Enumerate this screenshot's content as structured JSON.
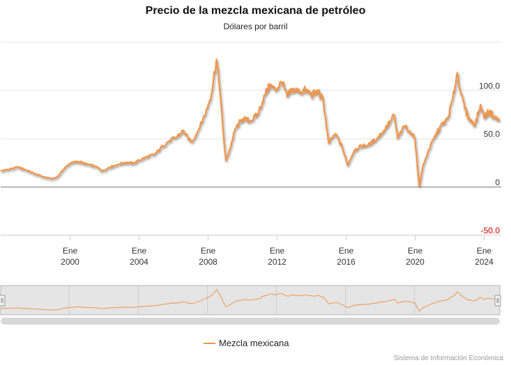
{
  "chart_data": {
    "type": "line",
    "title": "Precio de la mezcla mexicana de petróleo",
    "subtitle": "Dólares por barril",
    "xlabel": "",
    "ylabel": "",
    "x_range": [
      1996.0,
      2025.0
    ],
    "ylim": [
      -50,
      150
    ],
    "yticks": [
      {
        "value": 100,
        "label": "100.0"
      },
      {
        "value": 50,
        "label": "50.0"
      },
      {
        "value": 0,
        "label": "0"
      },
      {
        "value": -50,
        "label": "-50.0"
      }
    ],
    "xticks": [
      {
        "value": 2000,
        "month": "Ene",
        "year": "2000"
      },
      {
        "value": 2004,
        "month": "Ene",
        "year": "2004"
      },
      {
        "value": 2008,
        "month": "Ene",
        "year": "2008"
      },
      {
        "value": 2012,
        "month": "Ene",
        "year": "2012"
      },
      {
        "value": 2016,
        "month": "Ene",
        "year": "2016"
      },
      {
        "value": 2020,
        "month": "Ene",
        "year": "2020"
      },
      {
        "value": 2024,
        "month": "Ene",
        "year": "2024"
      }
    ],
    "series": [
      {
        "name": "Mezcla mexicana",
        "color": "#f0954a",
        "points": [
          [
            1996.0,
            16
          ],
          [
            1996.5,
            18
          ],
          [
            1997.0,
            20
          ],
          [
            1997.5,
            17
          ],
          [
            1998.0,
            13
          ],
          [
            1998.5,
            10
          ],
          [
            1999.0,
            8
          ],
          [
            1999.3,
            10
          ],
          [
            1999.6,
            17
          ],
          [
            2000.0,
            24
          ],
          [
            2000.5,
            26
          ],
          [
            2001.0,
            23
          ],
          [
            2001.5,
            21
          ],
          [
            2001.9,
            16
          ],
          [
            2002.3,
            20
          ],
          [
            2002.8,
            23
          ],
          [
            2003.2,
            25
          ],
          [
            2003.7,
            24
          ],
          [
            2004.0,
            27
          ],
          [
            2004.5,
            31
          ],
          [
            2004.9,
            33
          ],
          [
            2005.4,
            42
          ],
          [
            2005.8,
            48
          ],
          [
            2006.1,
            50
          ],
          [
            2006.6,
            58
          ],
          [
            2006.9,
            48
          ],
          [
            2007.1,
            47
          ],
          [
            2007.5,
            60
          ],
          [
            2007.9,
            78
          ],
          [
            2008.2,
            95
          ],
          [
            2008.5,
            132
          ],
          [
            2008.7,
            100
          ],
          [
            2008.9,
            55
          ],
          [
            2009.05,
            27
          ],
          [
            2009.3,
            40
          ],
          [
            2009.6,
            60
          ],
          [
            2010.0,
            70
          ],
          [
            2010.5,
            68
          ],
          [
            2010.9,
            75
          ],
          [
            2011.3,
            95
          ],
          [
            2011.6,
            105
          ],
          [
            2011.9,
            100
          ],
          [
            2012.3,
            108
          ],
          [
            2012.6,
            93
          ],
          [
            2012.9,
            101
          ],
          [
            2013.3,
            98
          ],
          [
            2013.7,
            100
          ],
          [
            2014.0,
            95
          ],
          [
            2014.4,
            98
          ],
          [
            2014.7,
            88
          ],
          [
            2015.0,
            45
          ],
          [
            2015.4,
            55
          ],
          [
            2015.8,
            40
          ],
          [
            2016.1,
            22
          ],
          [
            2016.5,
            38
          ],
          [
            2016.9,
            42
          ],
          [
            2017.3,
            43
          ],
          [
            2017.8,
            50
          ],
          [
            2018.2,
            58
          ],
          [
            2018.6,
            68
          ],
          [
            2018.8,
            74
          ],
          [
            2019.0,
            50
          ],
          [
            2019.4,
            63
          ],
          [
            2019.8,
            55
          ],
          [
            2020.0,
            50
          ],
          [
            2020.25,
            0
          ],
          [
            2020.45,
            20
          ],
          [
            2020.8,
            38
          ],
          [
            2021.1,
            50
          ],
          [
            2021.5,
            63
          ],
          [
            2021.9,
            70
          ],
          [
            2022.2,
            92
          ],
          [
            2022.45,
            118
          ],
          [
            2022.7,
            95
          ],
          [
            2022.9,
            80
          ],
          [
            2023.2,
            68
          ],
          [
            2023.5,
            65
          ],
          [
            2023.8,
            85
          ],
          [
            2024.0,
            72
          ],
          [
            2024.3,
            78
          ],
          [
            2024.6,
            72
          ],
          [
            2024.9,
            68
          ]
        ]
      }
    ]
  },
  "navigator": {
    "left_handle": "left-handle",
    "right_handle": "right-handle"
  },
  "legend": {
    "label": "Mezcla mexicana"
  },
  "credits": "Sistema de Información Económica"
}
